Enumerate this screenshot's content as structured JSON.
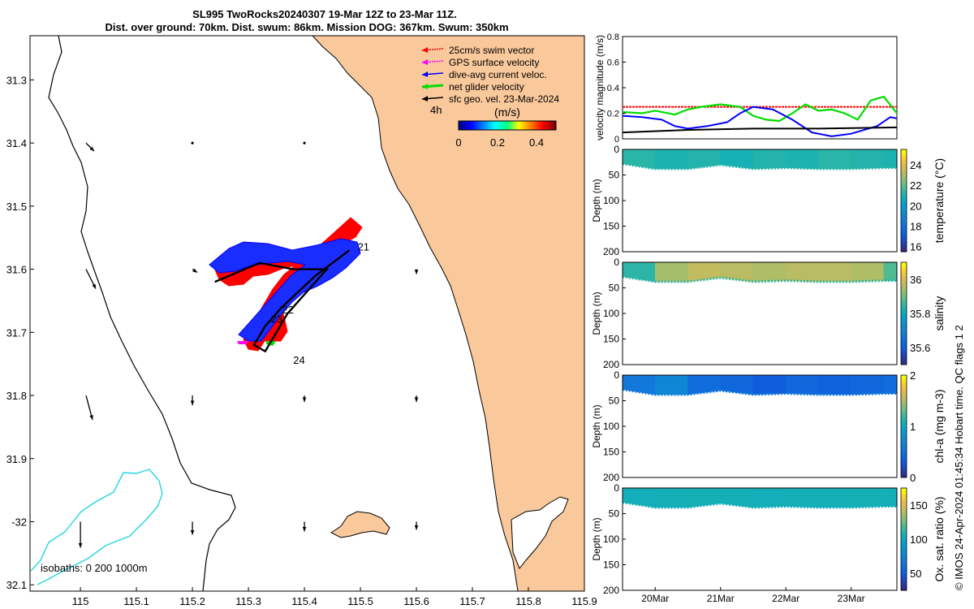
{
  "chart_data": [
    {
      "type": "map",
      "title": "SL995 TwoRocks20240307 19-Mar 12Z to 23-Mar 11Z.",
      "subtitle": "Dist. over ground: 70km. Dist. swum: 86km. Mission DOG: 367km. Swum: 350km",
      "xlim": [
        114.91,
        115.9
      ],
      "ylim": [
        -32.11,
        -31.23
      ],
      "x_ticks": [
        115,
        115.1,
        115.2,
        115.3,
        115.4,
        115.5,
        115.6,
        115.7,
        115.8,
        115.9
      ],
      "x_tick_labels": [
        "115",
        "115.1",
        "115.2",
        "115.3",
        "115.4",
        "115.5",
        "115.6",
        "115.7",
        "115.8",
        "115.9"
      ],
      "y_ticks": [
        -31.3,
        -31.4,
        -31.5,
        -31.6,
        -31.7,
        -31.8,
        -31.9,
        -32,
        -32.1
      ],
      "y_tick_labels": [
        "31.3",
        "31.4",
        "31.5",
        "31.6",
        "31.7",
        "31.8",
        "31.9",
        "-32",
        "32.1"
      ],
      "legend": {
        "placement": "top-right",
        "entries": [
          {
            "label": "25cm/s swim vector",
            "color": "#ff0000"
          },
          {
            "label": "GPS surface velocity",
            "color": "#ff00ff"
          },
          {
            "label": "dive-avg current veloc.",
            "color": "#0000ff"
          },
          {
            "label": "net glider velocity",
            "color": "#00dd00"
          },
          {
            "label": "sfc geo. vel. 23-Mar-2024",
            "color": "#000000"
          }
        ]
      },
      "colorbar": {
        "label": "(m/s)",
        "ticks": [
          0,
          0.2,
          0.4
        ],
        "tick_labels": [
          "0",
          "0.2",
          "0.4"
        ],
        "range": [
          0,
          0.5
        ]
      },
      "time_label": "4h",
      "day_labels": [
        {
          "text": "21",
          "lon": 115.495,
          "lat": -31.57
        },
        {
          "text": "22",
          "lon": 115.36,
          "lat": -31.67
        },
        {
          "text": "23",
          "lon": 115.34,
          "lat": -31.685
        },
        {
          "text": "24",
          "lon": 115.38,
          "lat": -31.75
        }
      ],
      "isobath_label": "isobaths: 0   200  1000m",
      "track": [
        {
          "lon": 115.48,
          "lat": -31.57
        },
        {
          "lon": 115.42,
          "lat": -31.61
        },
        {
          "lon": 115.39,
          "lat": -31.635
        },
        {
          "lon": 115.36,
          "lat": -31.66
        },
        {
          "lon": 115.33,
          "lat": -31.69
        },
        {
          "lon": 115.31,
          "lat": -31.72
        },
        {
          "lon": 115.33,
          "lat": -31.73
        },
        {
          "lon": 115.37,
          "lat": -31.67
        },
        {
          "lon": 115.44,
          "lat": -31.6
        },
        {
          "lon": 115.38,
          "lat": -31.6
        },
        {
          "lon": 115.32,
          "lat": -31.59
        },
        {
          "lon": 115.24,
          "lat": -31.62
        }
      ],
      "geo_vectors": [
        {
          "lon": 115.01,
          "lat": -31.4,
          "u": 0.05,
          "v": -0.05
        },
        {
          "lon": 115.2,
          "lat": -31.4,
          "u": 0,
          "v": 0
        },
        {
          "lon": 115.4,
          "lat": -31.4,
          "u": 0,
          "v": 0
        },
        {
          "lon": 115.01,
          "lat": -31.6,
          "u": 0.06,
          "v": -0.12
        },
        {
          "lon": 115.2,
          "lat": -31.6,
          "u": 0.03,
          "v": -0.02
        },
        {
          "lon": 115.6,
          "lat": -31.6,
          "u": 0,
          "v": -0.03
        },
        {
          "lon": 115.01,
          "lat": -31.8,
          "u": 0.04,
          "v": -0.15
        },
        {
          "lon": 115.2,
          "lat": -31.8,
          "u": 0,
          "v": -0.06
        },
        {
          "lon": 115.4,
          "lat": -31.8,
          "u": 0,
          "v": -0.04
        },
        {
          "lon": 115.6,
          "lat": -31.8,
          "u": 0,
          "v": -0.04
        },
        {
          "lon": 115.0,
          "lat": -32.0,
          "u": 0,
          "v": -0.16
        },
        {
          "lon": 115.2,
          "lat": -32.0,
          "u": 0,
          "v": -0.08
        },
        {
          "lon": 115.4,
          "lat": -32.0,
          "u": 0,
          "v": -0.06
        },
        {
          "lon": 115.6,
          "lat": -32.0,
          "u": 0,
          "v": -0.05
        }
      ]
    },
    {
      "type": "line",
      "ylabel": "velocity magnitude (m/s)",
      "ylim": [
        0,
        0.8
      ],
      "y_ticks": [
        0,
        0.2,
        0.4,
        0.6,
        0.8
      ],
      "xlim": [
        0,
        4.2
      ],
      "series": [
        {
          "color": "#ff0000",
          "x": [
            0,
            4.2
          ],
          "y": [
            0.25,
            0.25
          ]
        },
        {
          "color": "#00dd00",
          "x": [
            0,
            0.3,
            0.5,
            0.8,
            1.0,
            1.2,
            1.5,
            1.8,
            2.0,
            2.2,
            2.4,
            2.6,
            2.8,
            3.0,
            3.2,
            3.4,
            3.6,
            3.8,
            4.0,
            4.2
          ],
          "y": [
            0.21,
            0.2,
            0.22,
            0.19,
            0.23,
            0.25,
            0.27,
            0.25,
            0.18,
            0.15,
            0.14,
            0.2,
            0.27,
            0.22,
            0.23,
            0.2,
            0.15,
            0.3,
            0.33,
            0.2
          ]
        },
        {
          "color": "#0000ff",
          "x": [
            0,
            0.3,
            0.6,
            0.8,
            1.0,
            1.3,
            1.6,
            1.8,
            2.0,
            2.3,
            2.6,
            2.9,
            3.2,
            3.5,
            3.7,
            3.9,
            4.1,
            4.2
          ],
          "y": [
            0.18,
            0.17,
            0.15,
            0.1,
            0.08,
            0.1,
            0.13,
            0.2,
            0.25,
            0.23,
            0.15,
            0.05,
            0.02,
            0.04,
            0.07,
            0.1,
            0.17,
            0.16
          ]
        },
        {
          "color": "#000000",
          "x": [
            0,
            1.0,
            2.0,
            3.0,
            4.2
          ],
          "y": [
            0.05,
            0.07,
            0.08,
            0.08,
            0.09
          ]
        }
      ]
    },
    {
      "type": "heatmap",
      "ylabel": "Depth (m)",
      "colorbar_label": "temperature (°C)",
      "ylim": [
        0,
        200
      ],
      "y_ticks": [
        0,
        50,
        100,
        150,
        200
      ],
      "colorbar_range": [
        15.5,
        25.5
      ],
      "colorbar_ticks": [
        16,
        18,
        20,
        22,
        24
      ],
      "x": [
        0,
        0.5,
        1.0,
        1.5,
        2.0,
        2.5,
        3.0,
        3.5,
        4.0,
        4.2
      ],
      "max_depth": [
        28,
        38,
        38,
        30,
        38,
        36,
        38,
        38,
        36,
        36
      ],
      "values": [
        21.3,
        21.1,
        21.2,
        21.0,
        21.2,
        21.1,
        21.3,
        21.2,
        21.1,
        21.2
      ]
    },
    {
      "type": "heatmap",
      "ylabel": "Depth (m)",
      "colorbar_label": "salinity",
      "ylim": [
        0,
        200
      ],
      "y_ticks": [
        0,
        50,
        100,
        150,
        200
      ],
      "colorbar_range": [
        35.5,
        36.1
      ],
      "colorbar_ticks": [
        35.6,
        35.8,
        36
      ],
      "x": [
        0,
        0.5,
        1.0,
        1.5,
        2.0,
        2.5,
        3.0,
        3.5,
        4.0,
        4.2
      ],
      "max_depth": [
        28,
        38,
        38,
        30,
        38,
        36,
        38,
        38,
        36,
        36
      ],
      "values": [
        35.85,
        35.95,
        35.98,
        35.97,
        35.96,
        35.97,
        35.97,
        35.96,
        35.88,
        35.97
      ]
    },
    {
      "type": "heatmap",
      "ylabel": "Depth (m)",
      "colorbar_label": "chl-a (mg m-3)",
      "ylim": [
        0,
        200
      ],
      "y_ticks": [
        0,
        50,
        100,
        150,
        200
      ],
      "colorbar_range": [
        0,
        2
      ],
      "colorbar_ticks": [
        0,
        1,
        2
      ],
      "x": [
        0,
        0.5,
        1.0,
        1.5,
        2.0,
        2.5,
        3.0,
        3.5,
        4.0,
        4.2
      ],
      "max_depth": [
        28,
        38,
        38,
        30,
        38,
        36,
        38,
        38,
        36,
        36
      ],
      "values": [
        0.55,
        0.7,
        0.45,
        0.4,
        0.3,
        0.4,
        0.35,
        0.4,
        0.45,
        0.5
      ]
    },
    {
      "type": "heatmap",
      "ylabel": "Depth (m)",
      "colorbar_label": "Ox. sat. ratio (%)",
      "ylim": [
        0,
        200
      ],
      "y_ticks": [
        0,
        50,
        100,
        150,
        200
      ],
      "colorbar_range": [
        25,
        175
      ],
      "colorbar_ticks": [
        50,
        100,
        150
      ],
      "x": [
        0,
        0.5,
        1.0,
        1.5,
        2.0,
        2.5,
        3.0,
        3.5,
        4.0,
        4.2
      ],
      "max_depth": [
        28,
        38,
        38,
        30,
        38,
        36,
        38,
        38,
        36,
        36
      ],
      "values": [
        105,
        106,
        107,
        106,
        105,
        106,
        106,
        107,
        106,
        106
      ],
      "x_ticks": [
        0.5,
        1.5,
        2.5,
        3.5
      ],
      "x_tick_labels": [
        "20Mar",
        "21Mar",
        "22Mar",
        "23Mar"
      ]
    }
  ],
  "footer_text": "© IMOS 24-Apr-2024 01:45:34 Hobart time. QC flags 1  2"
}
